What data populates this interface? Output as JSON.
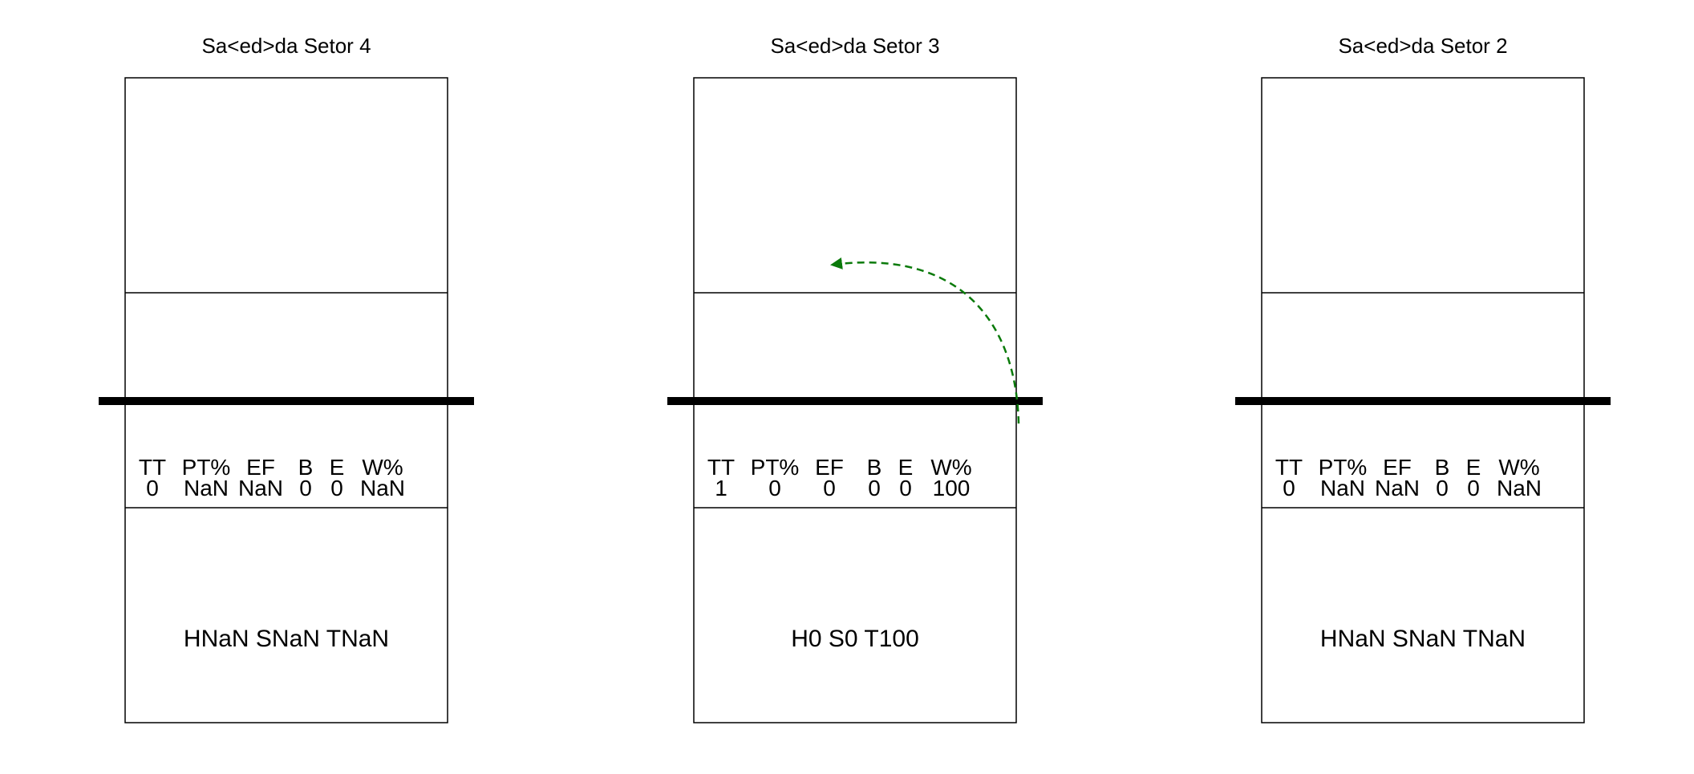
{
  "colors": {
    "background": "#ffffff",
    "lines": "#000000",
    "arrow": "#0a7a0a"
  },
  "panels": [
    {
      "title": "Sa<ed>da Setor 4",
      "stats_header": [
        "TT",
        "PT%",
        "EF",
        "B",
        "E",
        "W%"
      ],
      "stats_values": [
        "0",
        "NaN",
        "NaN",
        "0",
        "0",
        "NaN"
      ],
      "summary": "HNaN SNaN TNaN",
      "has_arrow": false
    },
    {
      "title": "Sa<ed>da Setor 3",
      "stats_header": [
        "TT",
        "PT%",
        "EF",
        "B",
        "E",
        "W%"
      ],
      "stats_values": [
        "1",
        "0",
        "0",
        "0",
        "0",
        "100"
      ],
      "summary": "H0 S0 T100",
      "has_arrow": true,
      "arrow_icon": "dashed-curved-arrow-icon"
    },
    {
      "title": "Sa<ed>da Setor 2",
      "stats_header": [
        "TT",
        "PT%",
        "EF",
        "B",
        "E",
        "W%"
      ],
      "stats_values": [
        "0",
        "NaN",
        "NaN",
        "0",
        "0",
        "NaN"
      ],
      "summary": "HNaN SNaN TNaN",
      "has_arrow": false
    }
  ]
}
